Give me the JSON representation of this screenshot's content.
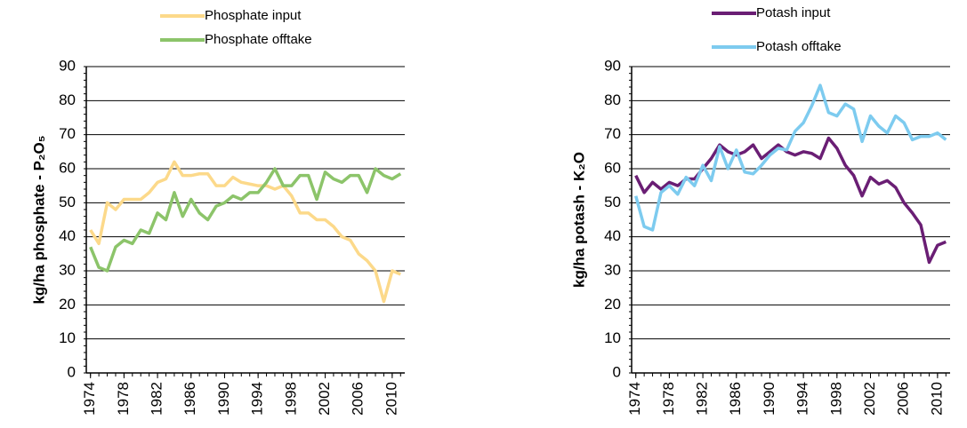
{
  "chart_data": [
    {
      "type": "line",
      "ylabel": "kg/ha phosphate - P₂O₅",
      "legend": "top-center",
      "grid": true,
      "x": [
        1974,
        1975,
        1976,
        1977,
        1978,
        1979,
        1980,
        1981,
        1982,
        1983,
        1984,
        1985,
        1986,
        1987,
        1988,
        1989,
        1990,
        1991,
        1992,
        1993,
        1994,
        1995,
        1996,
        1997,
        1998,
        1999,
        2000,
        2001,
        2002,
        2003,
        2004,
        2005,
        2006,
        2007,
        2008,
        2009,
        2010,
        2011
      ],
      "xlim": [
        1973.5,
        2011.5
      ],
      "xticks": [
        1974,
        1978,
        1982,
        1986,
        1990,
        1994,
        1998,
        2002,
        2006,
        2010
      ],
      "ylim": [
        0,
        90
      ],
      "yticks": [
        0,
        10,
        20,
        30,
        40,
        50,
        60,
        70,
        80,
        90
      ],
      "series": [
        {
          "name": "Phosphate input",
          "color": "#fcd98a",
          "values": [
            42,
            38,
            50,
            48,
            51,
            51,
            51,
            53,
            56,
            57,
            62,
            58,
            58,
            58.5,
            58.5,
            55,
            55,
            57.5,
            56,
            55.5,
            55,
            55,
            54,
            55,
            52,
            47,
            47,
            45,
            45,
            43,
            40,
            39,
            35,
            33,
            30,
            21,
            30,
            29
          ]
        },
        {
          "name": "Phosphate offtake",
          "color": "#8cc46a",
          "values": [
            37,
            31,
            30,
            37,
            39,
            38,
            42,
            41,
            47,
            45,
            53,
            46,
            51,
            47,
            45,
            49,
            50,
            52,
            51,
            53,
            53,
            56,
            60,
            55,
            55,
            58,
            58,
            51,
            59,
            57,
            56,
            58,
            58,
            53,
            60,
            58,
            57,
            58.5
          ]
        }
      ]
    },
    {
      "type": "line",
      "ylabel": "kg/ha potash - K₂O",
      "legend": "top-right",
      "grid": true,
      "x": [
        1974,
        1975,
        1976,
        1977,
        1978,
        1979,
        1980,
        1981,
        1982,
        1983,
        1984,
        1985,
        1986,
        1987,
        1988,
        1989,
        1990,
        1991,
        1992,
        1993,
        1994,
        1995,
        1996,
        1997,
        1998,
        1999,
        2000,
        2001,
        2002,
        2003,
        2004,
        2005,
        2006,
        2007,
        2008,
        2009,
        2010,
        2011
      ],
      "xlim": [
        1973.5,
        2011.5
      ],
      "xticks": [
        1974,
        1978,
        1982,
        1986,
        1990,
        1994,
        1998,
        2002,
        2006,
        2010
      ],
      "ylim": [
        0,
        90
      ],
      "yticks": [
        0,
        10,
        20,
        30,
        40,
        50,
        60,
        70,
        80,
        90
      ],
      "series": [
        {
          "name": "Potash input",
          "color": "#6a1e74",
          "values": [
            58,
            53,
            56,
            54,
            56,
            55,
            57,
            57,
            60,
            63,
            67,
            65,
            64,
            65,
            67,
            63,
            65,
            67,
            65,
            64,
            65,
            64.5,
            63,
            69,
            66,
            61,
            58,
            52,
            57.5,
            55.5,
            56.5,
            54.5,
            50,
            47,
            43.5,
            32.5,
            37.5,
            38.5
          ]
        },
        {
          "name": "Potash offtake",
          "color": "#7dcbef",
          "values": [
            52,
            43,
            42,
            53,
            55,
            52.5,
            57.5,
            55,
            61,
            56.5,
            66.5,
            60,
            65.5,
            59,
            58.5,
            61,
            64,
            66,
            65.5,
            71,
            73.5,
            78.5,
            84.5,
            76.5,
            75.5,
            79,
            77.5,
            68,
            75.5,
            72.5,
            70.5,
            75.5,
            73.5,
            68.5,
            69.5,
            69.5,
            70.5,
            68.5
          ]
        }
      ]
    }
  ]
}
